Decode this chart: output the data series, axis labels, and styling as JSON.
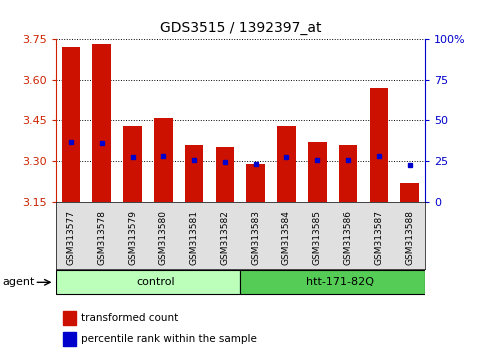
{
  "title": "GDS3515 / 1392397_at",
  "samples": [
    "GSM313577",
    "GSM313578",
    "GSM313579",
    "GSM313580",
    "GSM313581",
    "GSM313582",
    "GSM313583",
    "GSM313584",
    "GSM313585",
    "GSM313586",
    "GSM313587",
    "GSM313588"
  ],
  "bar_tops": [
    3.72,
    3.73,
    3.43,
    3.46,
    3.36,
    3.35,
    3.29,
    3.43,
    3.37,
    3.36,
    3.57,
    3.22
  ],
  "bar_bottom": 3.15,
  "percentile_values": [
    3.37,
    3.365,
    3.315,
    3.32,
    3.305,
    3.295,
    3.29,
    3.315,
    3.305,
    3.305,
    3.32,
    3.285
  ],
  "ylim": [
    3.15,
    3.75
  ],
  "yticks": [
    3.15,
    3.3,
    3.45,
    3.6,
    3.75
  ],
  "right_ylim": [
    0,
    100
  ],
  "right_yticks": [
    0,
    25,
    50,
    75,
    100
  ],
  "right_yticklabels": [
    "0",
    "25",
    "50",
    "75",
    "100%"
  ],
  "bar_color": "#cc1100",
  "dot_color": "#0000cc",
  "title_fontsize": 10,
  "left_tick_color": "#cc2200",
  "right_tick_color": "#0000cc",
  "control_color": "#bbffbb",
  "htt_color": "#55cc55",
  "agent_label": "agent",
  "group1_label": "control",
  "group2_label": "htt-171-82Q",
  "legend_item1": "transformed count",
  "legend_item2": "percentile rank within the sample",
  "n_control": 6,
  "n_htt": 6
}
